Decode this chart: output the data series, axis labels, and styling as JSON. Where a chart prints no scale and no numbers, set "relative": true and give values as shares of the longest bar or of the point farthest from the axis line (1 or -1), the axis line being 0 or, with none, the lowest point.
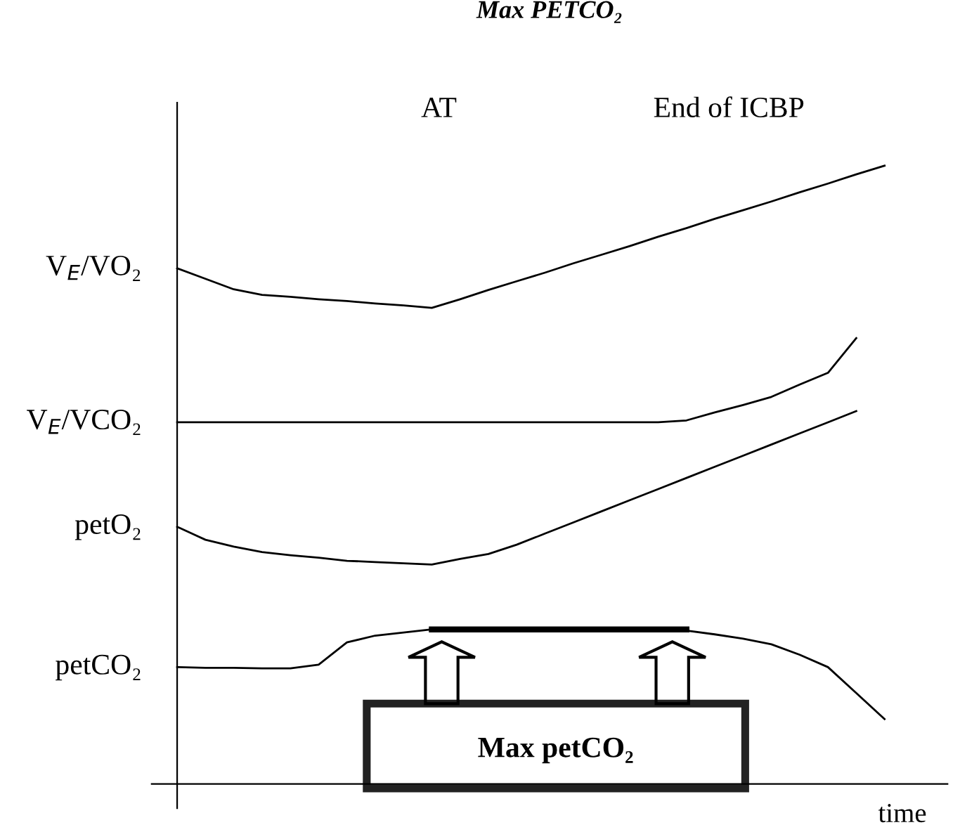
{
  "chart_data": {
    "type": "line",
    "title": "Max PETCO₂",
    "xlabel": "time",
    "relative": true,
    "categories": [
      null,
      null,
      null,
      null,
      null,
      null,
      null,
      null,
      null,
      null,
      null,
      null,
      null,
      null,
      null,
      null,
      null,
      null,
      null,
      null,
      null,
      null,
      null,
      null,
      null,
      null
    ],
    "annotations": [
      "AT",
      "End of ICBP",
      "Max petCO₂"
    ],
    "series": [
      {
        "name": "V$_{E}$/VO₂",
        "color": "#000000",
        "values": [
          0.834,
          0.817,
          0.8,
          0.791,
          0.788,
          0.784,
          0.781,
          0.777,
          0.774,
          0.77,
          0.784,
          0.799,
          0.813,
          0.827,
          0.842,
          0.856,
          0.87,
          0.885,
          0.899,
          0.914,
          0.928,
          0.942,
          0.957,
          0.971,
          0.986,
          1.0
        ]
      },
      {
        "name": "V$_{E}$/VCO₂",
        "color": "#000000",
        "values": [
          0.585,
          0.585,
          0.585,
          0.585,
          0.585,
          0.585,
          0.585,
          0.585,
          0.585,
          0.585,
          0.585,
          0.585,
          0.585,
          0.585,
          0.585,
          0.585,
          0.585,
          0.585,
          0.588,
          0.601,
          0.613,
          0.626,
          0.646,
          0.665,
          0.721,
          null
        ]
      },
      {
        "name": "petO₂",
        "color": "#000000",
        "values": [
          0.416,
          0.395,
          0.384,
          0.375,
          0.37,
          0.366,
          0.361,
          0.359,
          0.357,
          0.355,
          0.364,
          0.372,
          0.387,
          0.405,
          0.423,
          0.441,
          0.459,
          0.477,
          0.495,
          0.513,
          0.531,
          0.549,
          0.567,
          0.585,
          0.603,
          null
        ]
      },
      {
        "name": "petCO₂",
        "color": "#000000",
        "values": [
          0.189,
          0.188,
          0.188,
          0.187,
          0.187,
          0.193,
          0.229,
          0.24,
          0.245,
          0.25,
          0.25,
          0.25,
          0.25,
          0.25,
          0.25,
          0.25,
          0.25,
          0.25,
          0.248,
          0.242,
          0.235,
          0.226,
          0.209,
          0.189,
          0.147,
          0.105
        ]
      },
      {
        "color": "#000000",
        "values": [
          null,
          null,
          null,
          null,
          null,
          null,
          null,
          null,
          null,
          0.25,
          0.25,
          0.25,
          0.25,
          0.25,
          0.25,
          0.25,
          0.25,
          0.25,
          0.25,
          null,
          null,
          null,
          null,
          null,
          null,
          null
        ]
      }
    ]
  }
}
